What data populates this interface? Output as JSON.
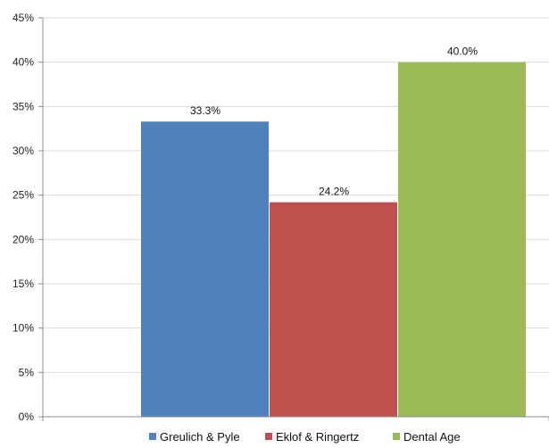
{
  "chart_data": {
    "type": "bar",
    "title": "",
    "xlabel": "",
    "ylabel": "",
    "ylim": [
      0,
      45
    ],
    "y_ticks": [
      "0%",
      "5%",
      "10%",
      "15%",
      "20%",
      "25%",
      "30%",
      "35%",
      "40%",
      "45%"
    ],
    "grid": true,
    "legend_position": "bottom",
    "series": [
      {
        "name": "Greulich & Pyle",
        "value": 33.3,
        "label": "33.3%",
        "color": "#4f81bd"
      },
      {
        "name": "Eklof & Ringertz",
        "value": 24.2,
        "label": "24.2%",
        "color": "#c0504d"
      },
      {
        "name": "Dental Age",
        "value": 40.0,
        "label": "40.0%",
        "color": "#9bbb59"
      }
    ]
  }
}
